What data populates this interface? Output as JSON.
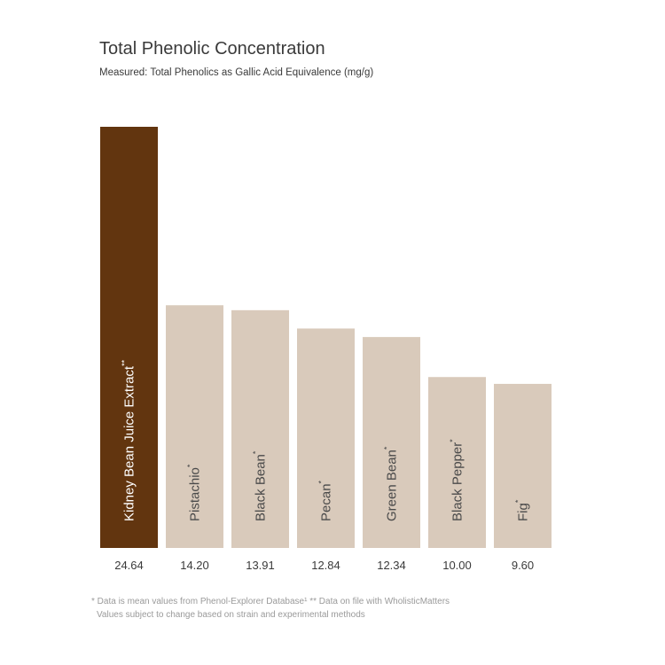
{
  "chart_data": {
    "type": "bar",
    "title": "Total Phenolic Concentration",
    "subtitle": "Measured: Total Phenolics as Gallic Acid Equivalence (mg/g)",
    "categories": [
      "Kidney Bean Juice Extract",
      "Pistachio",
      "Black Bean",
      "Pecan",
      "Green Bean",
      "Black Pepper",
      "Fig"
    ],
    "markers": [
      "**",
      "*",
      "*",
      "*",
      "*",
      "*",
      "*"
    ],
    "values": [
      24.64,
      14.2,
      13.91,
      12.84,
      12.34,
      10.0,
      9.6
    ],
    "value_labels": [
      "24.64",
      "14.20",
      "13.91",
      "12.84",
      "12.34",
      "10.00",
      "9.60"
    ],
    "ylim": [
      0,
      24.64
    ],
    "grid": false,
    "colors": {
      "highlight": "#62350f",
      "default": "#d9cabb",
      "highlight_text": "#ffffff",
      "default_text": "#4a4a4a"
    }
  },
  "footnotes": {
    "line1": "* Data is mean values from Phenol-Explorer Database¹   ** Data on file with WholisticMatters",
    "line2": "Values subject to change based on strain and experimental methods"
  }
}
